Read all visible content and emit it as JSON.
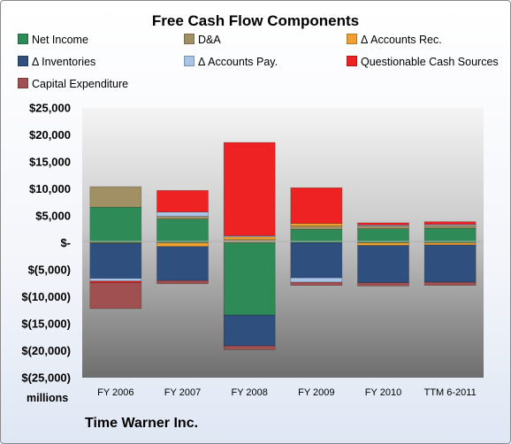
{
  "chart_data": {
    "type": "bar",
    "stacked": true,
    "title": "Free Cash Flow Components",
    "units_label": "millions",
    "company": "Time Warner Inc.",
    "categories": [
      "FY 2006",
      "FY 2007",
      "FY 2008",
      "FY 2009",
      "FY 2010",
      "TTM 6-2011"
    ],
    "ylim": [
      -25000,
      25000
    ],
    "y_ticks": [
      {
        "value": 25000,
        "label": "$25,000"
      },
      {
        "value": 20000,
        "label": "$20,000"
      },
      {
        "value": 15000,
        "label": "$15,000"
      },
      {
        "value": 10000,
        "label": "$10,000"
      },
      {
        "value": 5000,
        "label": "$5,000"
      },
      {
        "value": 0,
        "label": "$-"
      },
      {
        "value": -5000,
        "label": "$(5,000)"
      },
      {
        "value": -10000,
        "label": "$(10,000)"
      },
      {
        "value": -15000,
        "label": "$(15,000)"
      },
      {
        "value": -20000,
        "label": "$(20,000)"
      },
      {
        "value": -25000,
        "label": "$(25,000)"
      }
    ],
    "legend_position": "top",
    "grid": false,
    "series": [
      {
        "name": "Net Income",
        "color": "#2e8b57",
        "values": [
          6600,
          4400,
          -13400,
          2500,
          2600,
          2700
        ]
      },
      {
        "name": "D&A",
        "color": "#a09064",
        "values": [
          3800,
          500,
          600,
          600,
          500,
          500
        ]
      },
      {
        "name": "Δ Accounts Rec.",
        "color": "#f0a030",
        "values": [
          -100,
          -700,
          500,
          500,
          -500,
          -400
        ]
      },
      {
        "name": "Δ Inventories",
        "color": "#2f4f7f",
        "values": [
          -6500,
          -6300,
          -5700,
          -6500,
          -6900,
          -6900
        ]
      },
      {
        "name": "Δ Accounts Pay.",
        "color": "#a8c4e6",
        "values": [
          -500,
          800,
          200,
          -800,
          200,
          200
        ]
      },
      {
        "name": "Questionable Cash Sources",
        "color": "#ee2222",
        "values": [
          -300,
          4000,
          17300,
          6600,
          400,
          500
        ]
      },
      {
        "name": "Capital Expenditure",
        "color": "#a05050",
        "values": [
          -4800,
          -600,
          -700,
          -600,
          -600,
          -600
        ]
      }
    ]
  }
}
